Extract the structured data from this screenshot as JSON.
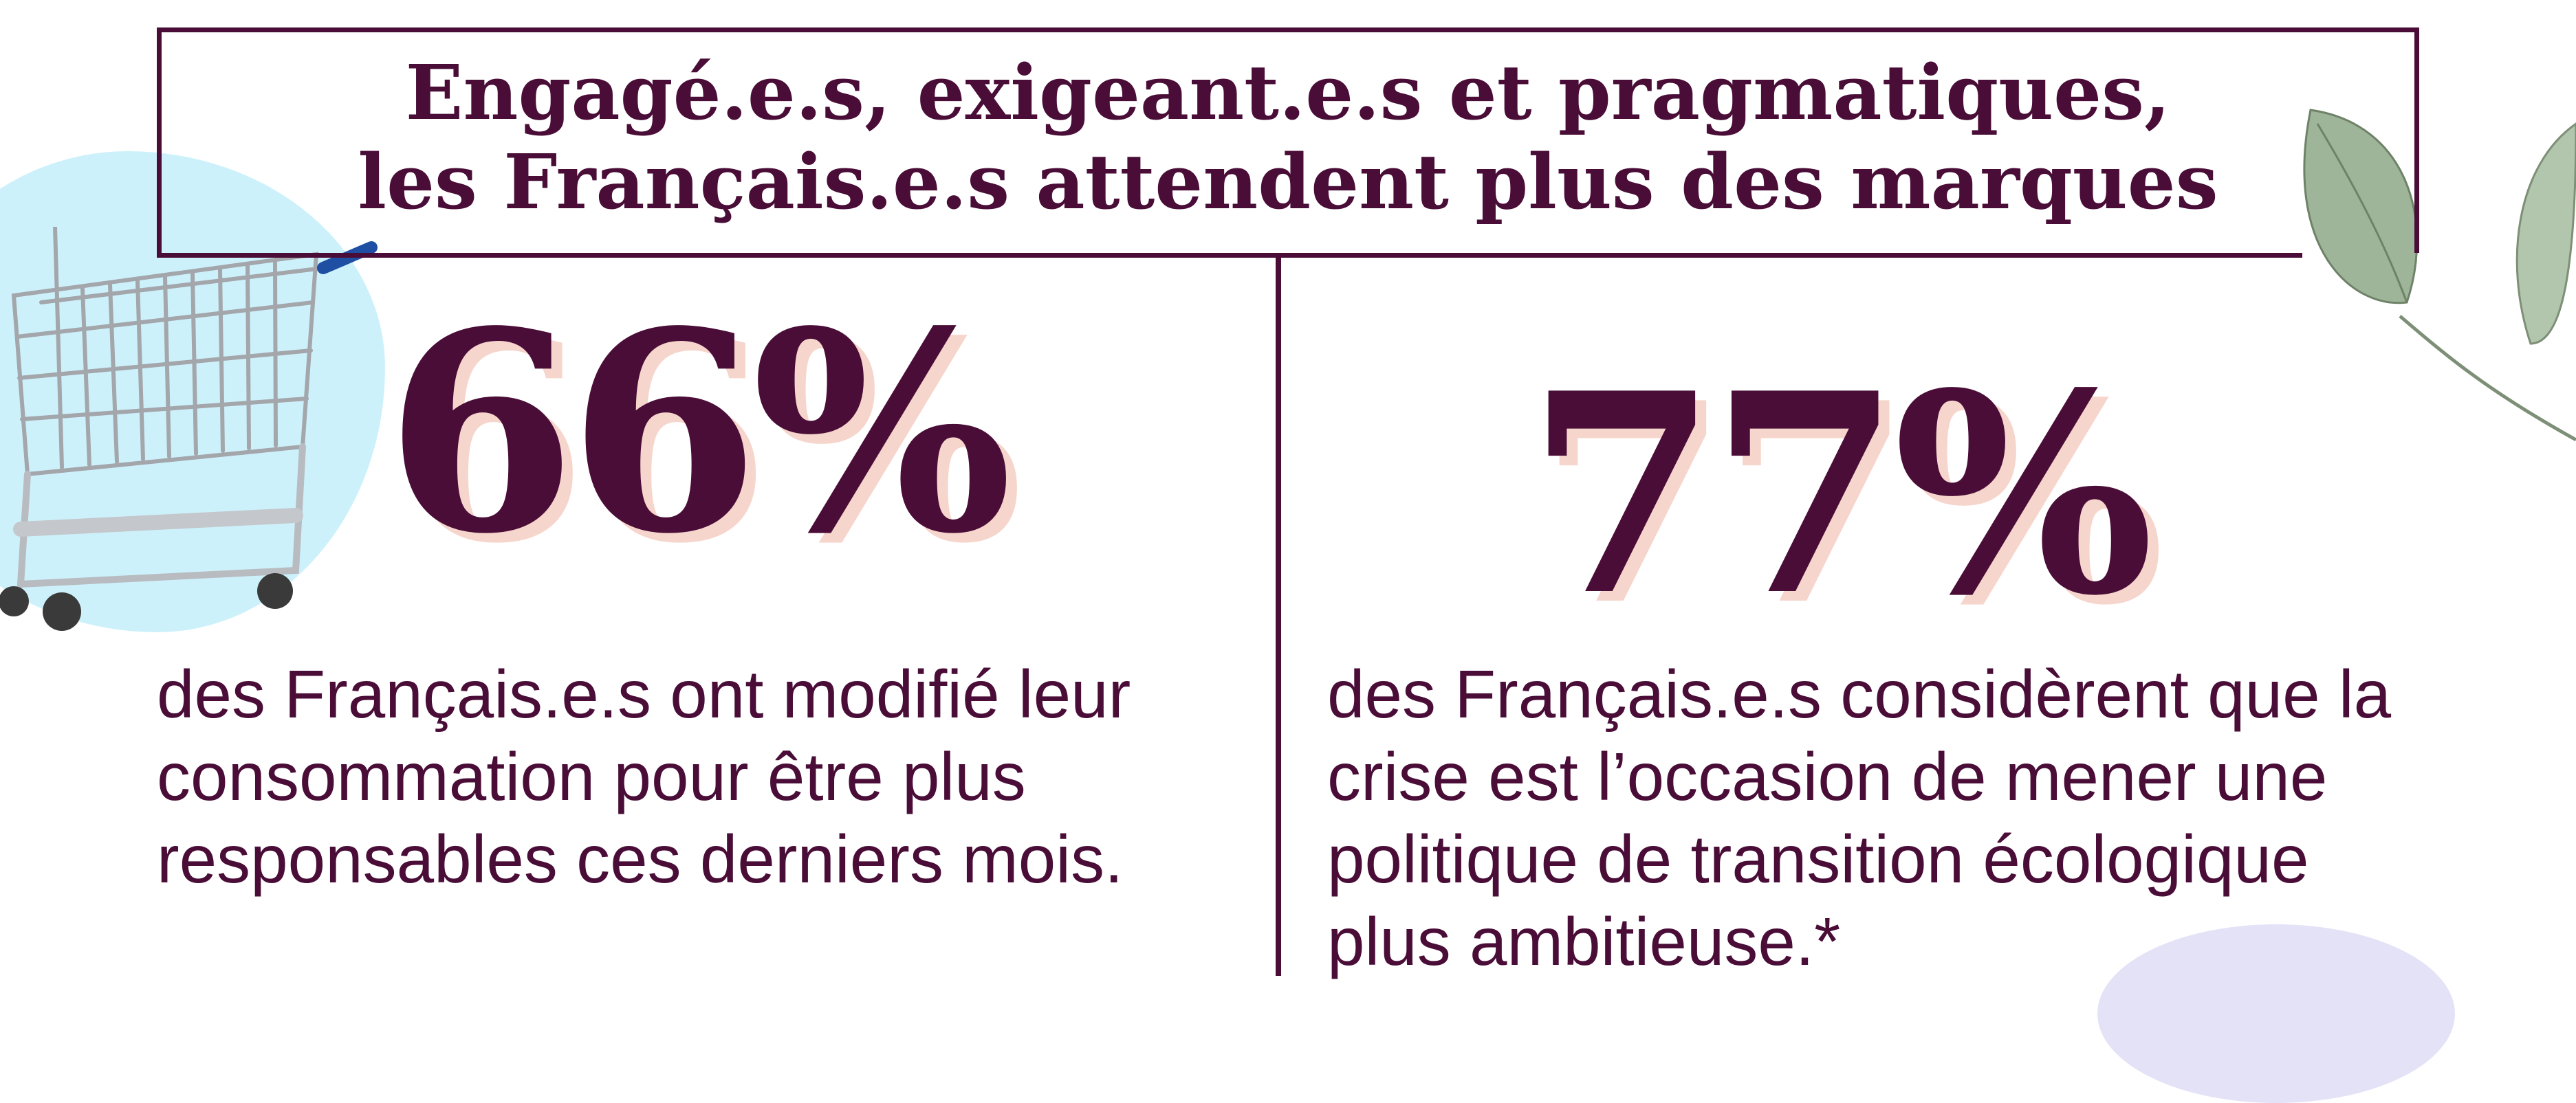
{
  "title": {
    "line1": "Engagé.e.s, exigeant.e.s et pragmatiques,",
    "line2": "les Français.e.s attendent plus des marques"
  },
  "stats": [
    {
      "value": "66%",
      "lines": [
        "des Français.e.s ont modifié leur",
        "consommation pour être plus",
        "responsables ces derniers mois."
      ]
    },
    {
      "value": "77%",
      "lines": [
        "des Français.e.s considèrent que la",
        "crise est l’occasion de mener une",
        "politique de transition écologique",
        "plus ambitieuse.*"
      ]
    }
  ],
  "colors": {
    "primary": "#4a0d37",
    "shadow": "#f6d6cc",
    "blob_blue": "#cdf1fb",
    "blob_lilac": "#e4e2f7",
    "leaf": "#9fb59a"
  },
  "icons": {
    "cart": "shopping-cart-icon",
    "leaves": "eucalyptus-leaves-illustration"
  }
}
